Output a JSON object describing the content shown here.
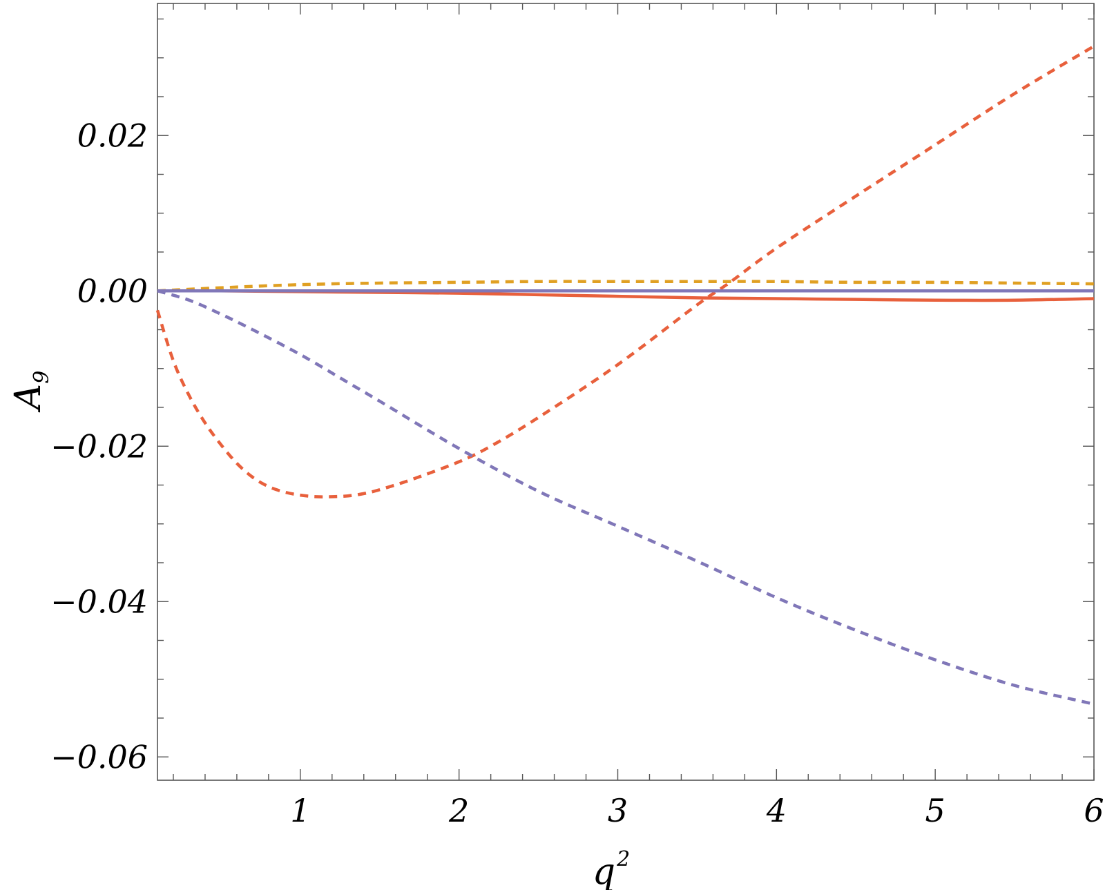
{
  "chart_data": {
    "type": "line",
    "xlabel": "q",
    "xlabel_superscript": "2",
    "ylabel": "A",
    "ylabel_subscript": "9",
    "xlim": [
      0.1,
      6.0
    ],
    "ylim": [
      -0.063,
      0.037
    ],
    "x_ticks": [
      1,
      2,
      3,
      4,
      5,
      6
    ],
    "x_tick_labels": [
      "1",
      "2",
      "3",
      "4",
      "5",
      "6"
    ],
    "y_ticks": [
      -0.06,
      -0.04,
      -0.02,
      0.0,
      0.02
    ],
    "y_tick_labels": [
      "−0.06",
      "−0.04",
      "−0.02",
      "0.00",
      "0.02"
    ],
    "grid": false,
    "legend": "none",
    "series": [
      {
        "color": "#e8603c",
        "style": "dashed",
        "x": [
          0.1,
          0.2,
          0.3,
          0.4,
          0.5,
          0.6,
          0.7,
          0.8,
          0.9,
          1.0,
          1.1,
          1.2,
          1.3,
          1.4,
          1.5,
          1.7,
          2.0,
          2.2,
          2.5,
          3.0,
          3.5,
          3.7,
          4.0,
          4.5,
          5.0,
          5.5,
          6.0
        ],
        "y": [
          -0.0025,
          -0.009,
          -0.0135,
          -0.017,
          -0.0198,
          -0.0222,
          -0.024,
          -0.0252,
          -0.0259,
          -0.0263,
          -0.0265,
          -0.0265,
          -0.0264,
          -0.0261,
          -0.0256,
          -0.0243,
          -0.022,
          -0.02,
          -0.0163,
          -0.0095,
          -0.0018,
          0.001,
          0.0055,
          0.0122,
          0.0188,
          0.0254,
          0.0315
        ]
      },
      {
        "color": "#8077b8",
        "style": "dashed",
        "x": [
          0.1,
          0.3,
          0.5,
          0.7,
          1.0,
          1.3,
          1.5,
          2.0,
          2.5,
          3.0,
          3.5,
          4.0,
          4.5,
          5.0,
          5.5,
          6.0
        ],
        "y": [
          0.0,
          -0.0012,
          -0.003,
          -0.005,
          -0.0082,
          -0.0118,
          -0.0142,
          -0.0203,
          -0.0258,
          -0.0303,
          -0.0348,
          -0.0395,
          -0.0437,
          -0.0475,
          -0.0508,
          -0.0532
        ]
      },
      {
        "color": "#e0a023",
        "style": "dashed",
        "x": [
          0.1,
          0.5,
          1.0,
          1.5,
          2.0,
          2.5,
          3.0,
          3.5,
          4.0,
          4.5,
          5.0,
          5.5,
          6.0
        ],
        "y": [
          0.0,
          0.0004,
          0.0008,
          0.001,
          0.0011,
          0.0012,
          0.0012,
          0.0012,
          0.0012,
          0.0011,
          0.0011,
          0.001,
          0.0009
        ]
      },
      {
        "color": "#e8603c",
        "style": "solid",
        "x": [
          0.1,
          0.5,
          1.0,
          1.5,
          2.0,
          2.5,
          3.0,
          3.5,
          4.0,
          4.5,
          5.0,
          5.5,
          6.0
        ],
        "y": [
          0.0,
          0.0,
          -0.0001,
          -0.0002,
          -0.0003,
          -0.0005,
          -0.0007,
          -0.0009,
          -0.001,
          -0.0011,
          -0.0012,
          -0.0012,
          -0.001
        ]
      },
      {
        "color": "#8077b8",
        "style": "solid",
        "x": [
          0.1,
          1.0,
          2.0,
          3.0,
          4.0,
          5.0,
          6.0
        ],
        "y": [
          0.0,
          0.0,
          0.0,
          0.0,
          0.0,
          0.0,
          0.0
        ]
      }
    ]
  }
}
